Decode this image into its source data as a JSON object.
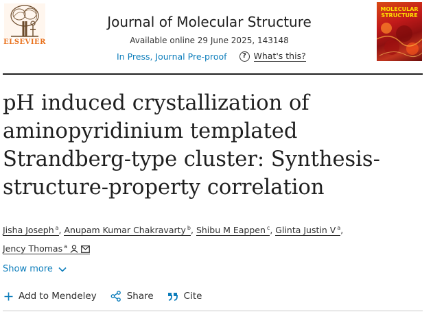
{
  "header": {
    "publisher": "ELSEVIER",
    "journal_title": "Journal of Molecular Structure",
    "available_online": "Available online 29 June 2025, 143148",
    "in_press": "In Press, Journal Pre-proof",
    "whats_this": "What's this?",
    "cover_title": "MOLECULAR STRUCTURE"
  },
  "article": {
    "title": "pH induced crystallization of aminopyridinium templated Strandberg-type cluster: Synthesis-structure-property correlation",
    "authors": [
      {
        "name": "Jisha Joseph",
        "aff": "a"
      },
      {
        "name": "Anupam Kumar Chakravarty",
        "aff": "b"
      },
      {
        "name": "Shibu M Eappen",
        "aff": "c"
      },
      {
        "name": "Glinta Justin V",
        "aff": "a"
      },
      {
        "name": "Jency Thomas",
        "aff": "a"
      }
    ],
    "show_more": "Show more"
  },
  "actions": {
    "add_mendeley": "Add to Mendeley",
    "share": "Share",
    "cite": "Cite"
  },
  "colors": {
    "link": "#0c7dbb",
    "publisher_orange": "#e9711c",
    "cover_red": "#c21a1a",
    "cover_yellow": "#ffe000"
  }
}
